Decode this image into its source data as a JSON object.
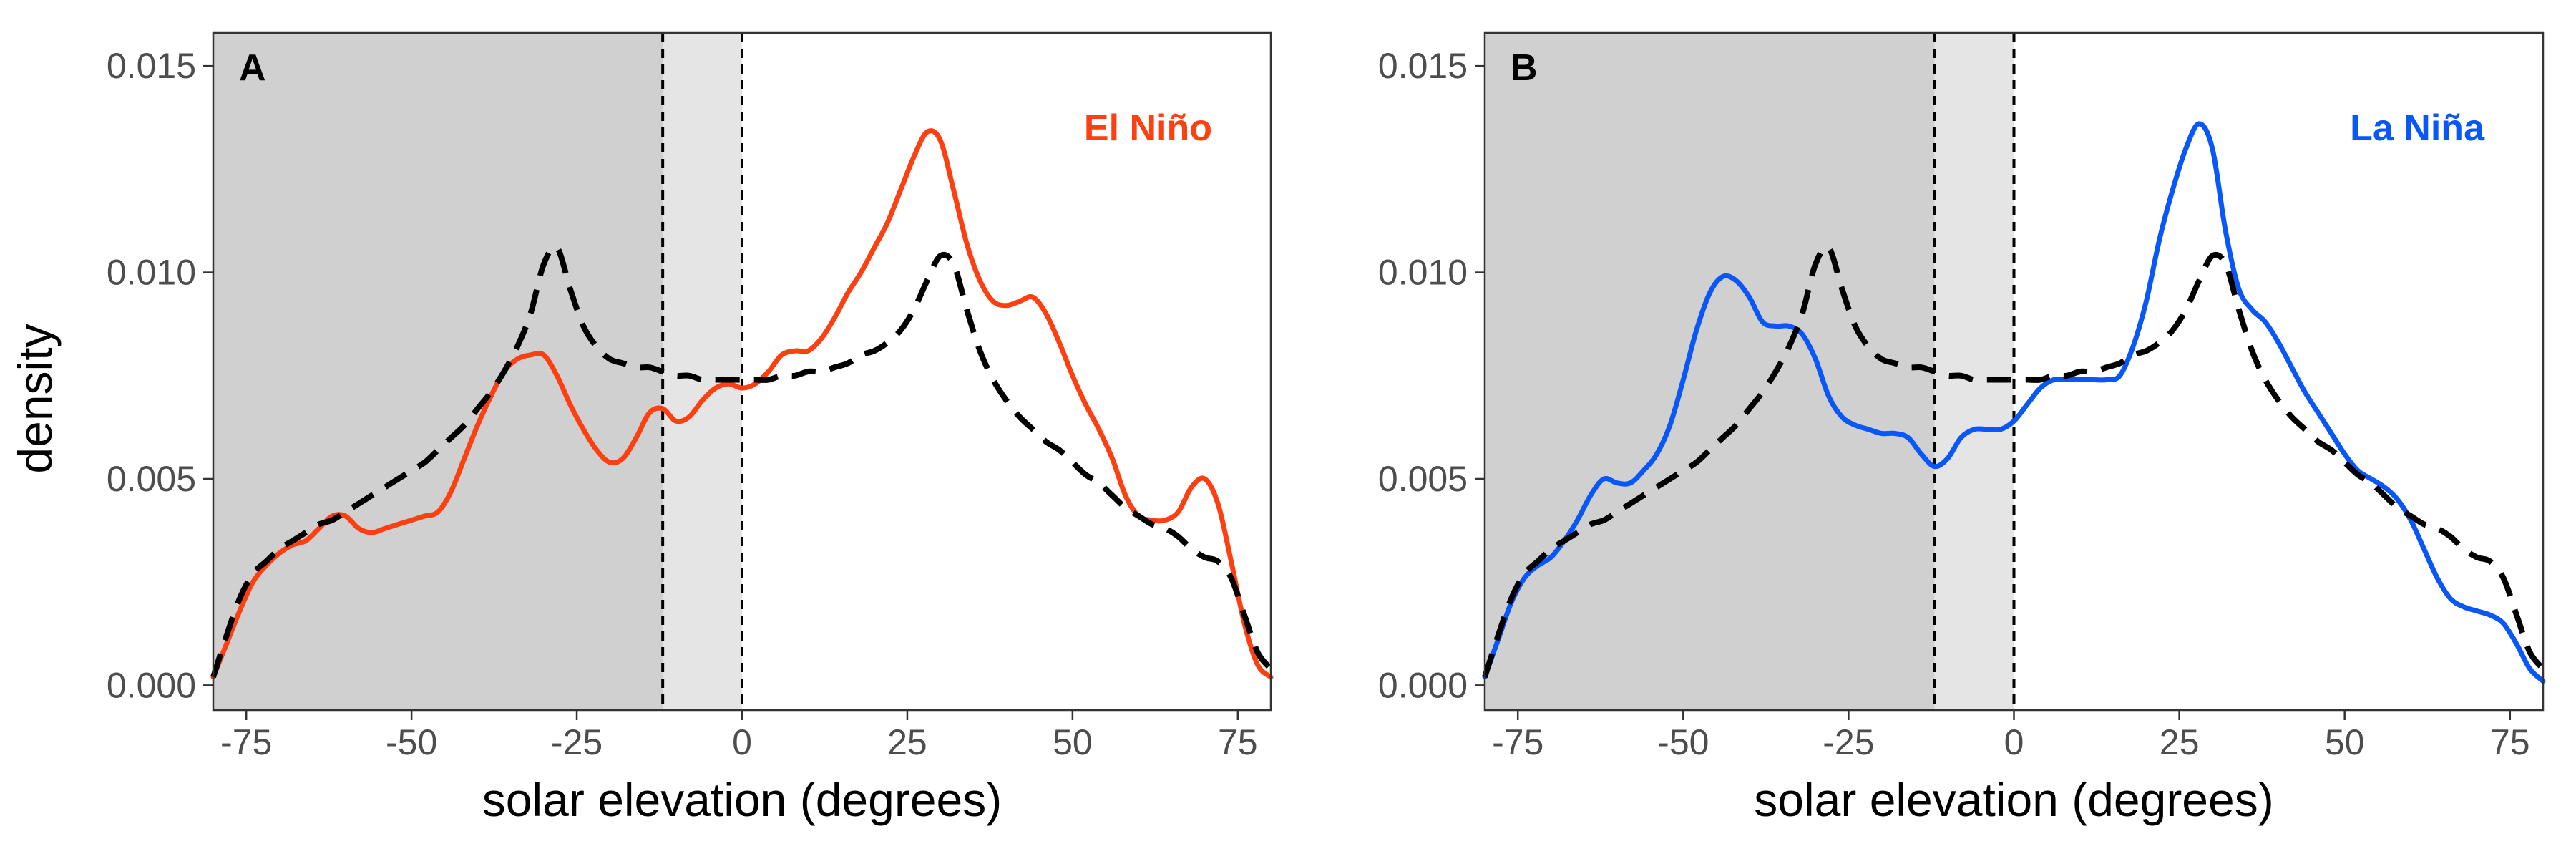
{
  "chart_data": [
    {
      "type": "line",
      "panel_label": "A",
      "annotation": "El Niño",
      "ylabel": "density",
      "xlabel": "solar elevation (degrees)",
      "xlim": [
        -80,
        80
      ],
      "ylim": [
        -0.0006,
        0.0158
      ],
      "x_ticks": [
        -75,
        -50,
        -25,
        0,
        25,
        50,
        75
      ],
      "x_tick_labels": [
        "-75",
        "-50",
        "-25",
        "0",
        "25",
        "50",
        "75"
      ],
      "y_ticks": [
        0,
        0.005,
        0.01,
        0.015
      ],
      "y_tick_labels": [
        "0.000",
        "0.005",
        "0.010",
        "0.015"
      ],
      "shaded_regions": [
        {
          "x": [
            -80,
            -12
          ],
          "color": "#d0d0d0"
        },
        {
          "x": [
            -12,
            0
          ],
          "color": "#e5e5e5"
        }
      ],
      "vlines": [
        -12,
        0
      ],
      "grid": false,
      "series": [
        {
          "color": "#fd4012",
          "style": "solid",
          "x": [
            -80,
            -78,
            -76,
            -74,
            -72,
            -70,
            -68,
            -66,
            -64,
            -62,
            -60,
            -58,
            -56,
            -54,
            -52,
            -50,
            -48,
            -46,
            -44,
            -42,
            -40,
            -38,
            -36,
            -34,
            -32,
            -30,
            -28,
            -26,
            -24,
            -22,
            -20,
            -18,
            -16,
            -14,
            -12,
            -10,
            -8,
            -6,
            -4,
            -2,
            0,
            2,
            4,
            6,
            8,
            10,
            12,
            14,
            16,
            18,
            20,
            22,
            24,
            26,
            28,
            30,
            32,
            34,
            36,
            38,
            40,
            42,
            44,
            46,
            48,
            50,
            52,
            54,
            56,
            58,
            60,
            62,
            64,
            66,
            68,
            70,
            72,
            74,
            76,
            78,
            80
          ],
          "y": [
            0.0002,
            0.001,
            0.0018,
            0.0025,
            0.0029,
            0.0032,
            0.0034,
            0.0035,
            0.0038,
            0.0041,
            0.0041,
            0.0038,
            0.0037,
            0.0038,
            0.0039,
            0.004,
            0.0041,
            0.0042,
            0.0047,
            0.0055,
            0.0063,
            0.007,
            0.0076,
            0.0079,
            0.008,
            0.008,
            0.0075,
            0.0068,
            0.0062,
            0.0057,
            0.0054,
            0.0055,
            0.006,
            0.0066,
            0.0067,
            0.0064,
            0.0065,
            0.0069,
            0.0072,
            0.0073,
            0.0072,
            0.0073,
            0.0076,
            0.008,
            0.0081,
            0.0081,
            0.0084,
            0.0089,
            0.0095,
            0.01,
            0.0106,
            0.0112,
            0.012,
            0.0128,
            0.0134,
            0.0132,
            0.012,
            0.0107,
            0.0098,
            0.0093,
            0.0092,
            0.0093,
            0.0094,
            0.009,
            0.0083,
            0.0075,
            0.0068,
            0.0062,
            0.0055,
            0.0046,
            0.0041,
            0.004,
            0.004,
            0.0042,
            0.0048,
            0.005,
            0.0044,
            0.003,
            0.0015,
            0.0005,
            0.0002
          ]
        },
        {
          "color": "#000000",
          "style": "dashed",
          "x": [
            -80,
            -78,
            -76,
            -74,
            -72,
            -70,
            -68,
            -66,
            -64,
            -62,
            -60,
            -58,
            -56,
            -54,
            -52,
            -50,
            -48,
            -46,
            -44,
            -42,
            -40,
            -38,
            -36,
            -34,
            -32,
            -30,
            -28,
            -26,
            -24,
            -22,
            -20,
            -18,
            -16,
            -14,
            -12,
            -10,
            -8,
            -6,
            -4,
            -2,
            0,
            2,
            4,
            6,
            8,
            10,
            12,
            14,
            16,
            18,
            20,
            22,
            24,
            26,
            28,
            30,
            32,
            34,
            36,
            38,
            40,
            42,
            44,
            46,
            48,
            50,
            52,
            54,
            56,
            58,
            60,
            62,
            64,
            66,
            68,
            70,
            72,
            74,
            76,
            78,
            80
          ],
          "y": [
            0.0002,
            0.0012,
            0.0021,
            0.0027,
            0.003,
            0.0033,
            0.0035,
            0.0037,
            0.0039,
            0.004,
            0.0042,
            0.0044,
            0.0046,
            0.0048,
            0.005,
            0.0052,
            0.0054,
            0.0057,
            0.006,
            0.0063,
            0.0067,
            0.0071,
            0.0076,
            0.0082,
            0.009,
            0.0102,
            0.0106,
            0.0096,
            0.0087,
            0.0082,
            0.0079,
            0.0078,
            0.0077,
            0.0077,
            0.0076,
            0.0075,
            0.0075,
            0.0074,
            0.0074,
            0.0074,
            0.0074,
            0.0074,
            0.0074,
            0.0075,
            0.0075,
            0.0076,
            0.0076,
            0.0077,
            0.0078,
            0.008,
            0.0081,
            0.0083,
            0.0086,
            0.0091,
            0.0098,
            0.0104,
            0.0102,
            0.0091,
            0.0081,
            0.0074,
            0.0069,
            0.0065,
            0.0062,
            0.0059,
            0.0057,
            0.0054,
            0.0051,
            0.0049,
            0.0046,
            0.0043,
            0.0041,
            0.0039,
            0.0038,
            0.0036,
            0.0033,
            0.0031,
            0.003,
            0.0026,
            0.0017,
            0.0008,
            0.0004
          ]
        }
      ]
    },
    {
      "type": "line",
      "panel_label": "B",
      "annotation": "La Niña",
      "ylabel": "",
      "xlabel": "solar elevation (degrees)",
      "xlim": [
        -80,
        80
      ],
      "ylim": [
        -0.0006,
        0.0158
      ],
      "x_ticks": [
        -75,
        -50,
        -25,
        0,
        25,
        50,
        75
      ],
      "x_tick_labels": [
        "-75",
        "-50",
        "-25",
        "0",
        "25",
        "50",
        "75"
      ],
      "y_ticks": [
        0,
        0.005,
        0.01,
        0.015
      ],
      "y_tick_labels": [
        "0.000",
        "0.005",
        "0.010",
        "0.015"
      ],
      "shaded_regions": [
        {
          "x": [
            -80,
            -12
          ],
          "color": "#d0d0d0"
        },
        {
          "x": [
            -12,
            0
          ],
          "color": "#e5e5e5"
        }
      ],
      "vlines": [
        -12,
        0
      ],
      "grid": false,
      "series": [
        {
          "color": "#0a57f8",
          "style": "solid",
          "x": [
            -80,
            -78,
            -76,
            -74,
            -72,
            -70,
            -68,
            -66,
            -64,
            -62,
            -60,
            -58,
            -56,
            -54,
            -52,
            -50,
            -48,
            -46,
            -44,
            -42,
            -40,
            -38,
            -36,
            -34,
            -32,
            -30,
            -28,
            -26,
            -24,
            -22,
            -20,
            -18,
            -16,
            -14,
            -12,
            -10,
            -8,
            -6,
            -4,
            -2,
            0,
            2,
            4,
            6,
            8,
            10,
            12,
            14,
            16,
            18,
            20,
            22,
            24,
            26,
            28,
            30,
            32,
            34,
            36,
            38,
            40,
            42,
            44,
            46,
            48,
            50,
            52,
            54,
            56,
            58,
            60,
            62,
            64,
            66,
            68,
            70,
            72,
            74,
            76,
            78,
            80
          ],
          "y": [
            0.0002,
            0.0011,
            0.002,
            0.0026,
            0.0029,
            0.0031,
            0.0035,
            0.004,
            0.0046,
            0.005,
            0.0049,
            0.0049,
            0.0052,
            0.0056,
            0.0063,
            0.0074,
            0.0086,
            0.0095,
            0.0099,
            0.0098,
            0.0094,
            0.0088,
            0.0087,
            0.0087,
            0.0085,
            0.0079,
            0.007,
            0.0065,
            0.0063,
            0.0062,
            0.0061,
            0.0061,
            0.006,
            0.0056,
            0.0053,
            0.0055,
            0.006,
            0.0062,
            0.0062,
            0.0062,
            0.0064,
            0.0068,
            0.0072,
            0.0074,
            0.0074,
            0.0074,
            0.0074,
            0.0074,
            0.0075,
            0.0082,
            0.0093,
            0.0108,
            0.012,
            0.013,
            0.0136,
            0.013,
            0.011,
            0.0096,
            0.0091,
            0.0088,
            0.0083,
            0.0077,
            0.0071,
            0.0066,
            0.0061,
            0.0056,
            0.0052,
            0.005,
            0.0048,
            0.0045,
            0.004,
            0.0033,
            0.0026,
            0.0021,
            0.0019,
            0.0018,
            0.0017,
            0.0015,
            0.001,
            0.0004,
            0.0001
          ]
        },
        {
          "color": "#000000",
          "style": "dashed",
          "x": [
            -80,
            -78,
            -76,
            -74,
            -72,
            -70,
            -68,
            -66,
            -64,
            -62,
            -60,
            -58,
            -56,
            -54,
            -52,
            -50,
            -48,
            -46,
            -44,
            -42,
            -40,
            -38,
            -36,
            -34,
            -32,
            -30,
            -28,
            -26,
            -24,
            -22,
            -20,
            -18,
            -16,
            -14,
            -12,
            -10,
            -8,
            -6,
            -4,
            -2,
            0,
            2,
            4,
            6,
            8,
            10,
            12,
            14,
            16,
            18,
            20,
            22,
            24,
            26,
            28,
            30,
            32,
            34,
            36,
            38,
            40,
            42,
            44,
            46,
            48,
            50,
            52,
            54,
            56,
            58,
            60,
            62,
            64,
            66,
            68,
            70,
            72,
            74,
            76,
            78,
            80
          ],
          "y": [
            0.0002,
            0.0012,
            0.0021,
            0.0027,
            0.003,
            0.0033,
            0.0035,
            0.0037,
            0.0039,
            0.004,
            0.0042,
            0.0044,
            0.0046,
            0.0048,
            0.005,
            0.0052,
            0.0054,
            0.0057,
            0.006,
            0.0063,
            0.0067,
            0.0071,
            0.0076,
            0.0082,
            0.009,
            0.0102,
            0.0106,
            0.0096,
            0.0087,
            0.0082,
            0.0079,
            0.0078,
            0.0077,
            0.0077,
            0.0076,
            0.0075,
            0.0075,
            0.0074,
            0.0074,
            0.0074,
            0.0074,
            0.0074,
            0.0074,
            0.0075,
            0.0075,
            0.0076,
            0.0076,
            0.0077,
            0.0078,
            0.008,
            0.0081,
            0.0083,
            0.0086,
            0.0091,
            0.0098,
            0.0104,
            0.0102,
            0.0091,
            0.0081,
            0.0074,
            0.0069,
            0.0065,
            0.0062,
            0.0059,
            0.0057,
            0.0054,
            0.0051,
            0.0049,
            0.0046,
            0.0043,
            0.0041,
            0.0039,
            0.0038,
            0.0036,
            0.0033,
            0.0031,
            0.003,
            0.0026,
            0.0017,
            0.0008,
            0.0004
          ]
        }
      ]
    }
  ]
}
